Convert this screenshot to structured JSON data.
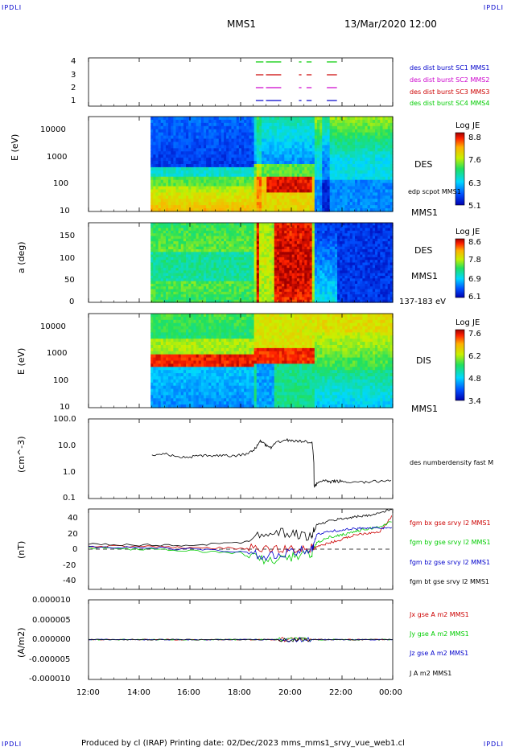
{
  "header": {
    "corner_tl": "IPDLI",
    "corner_tr": "IPDLI",
    "corner_bl": "IPDLI",
    "corner_br": "IPDLI",
    "spacecraft": "MMS1",
    "datetime": "13/Mar/2020 12:00"
  },
  "footer": {
    "produced": "Produced by cl (IRAP)   Printing date: 02/Dec/2023   mms_mms1_srvy_vue_web1.cl"
  },
  "colors": {
    "blue": "#0000cc",
    "magenta": "#cc00cc",
    "red": "#cc0000",
    "green": "#00cc00"
  },
  "chart_data": [
    {
      "type": "line",
      "panel": "burst",
      "yticks": [
        "4",
        "3",
        "2",
        "1"
      ],
      "legend": [
        {
          "name": "des dist burst SC1 MMS1",
          "color": "#0000cc"
        },
        {
          "name": "des dist burst SC2 MMS2",
          "color": "#cc00cc"
        },
        {
          "name": "des dist burst SC3 MMS3",
          "color": "#cc0000"
        },
        {
          "name": "des dist burst SC4 MMS4",
          "color": "#00cc00"
        }
      ],
      "intervals_hours": [
        [
          18.6,
          18.9
        ],
        [
          19.0,
          19.6
        ],
        [
          20.3,
          20.4
        ],
        [
          20.6,
          20.8
        ],
        [
          21.4,
          21.8
        ]
      ]
    },
    {
      "type": "heatmap",
      "panel": "des-energy",
      "ylabel": "E (eV)",
      "yticks": [
        "10000",
        "1000",
        "100",
        "10"
      ],
      "yrange": [
        10,
        30000
      ],
      "ylog": true,
      "label": "DES",
      "label2": "MMS1",
      "overlay_label": "edp scpot MMS1",
      "colorbar": {
        "title": "Log JE",
        "ticks": [
          "8.8",
          "7.6",
          "6.3",
          "5.1"
        ]
      },
      "data_start_hour": 14.45
    },
    {
      "type": "heatmap",
      "panel": "des-pitch",
      "ylabel": "a (deg)",
      "yticks": [
        "150",
        "100",
        "50",
        "0"
      ],
      "yrange": [
        0,
        180
      ],
      "label": "DES",
      "label2": "MMS1",
      "energy_label": "137-183 eV",
      "colorbar": {
        "title": "Log JE",
        "ticks": [
          "8.6",
          "7.8",
          "6.9",
          "6.1"
        ]
      },
      "data_start_hour": 14.45
    },
    {
      "type": "heatmap",
      "panel": "dis-energy",
      "ylabel": "E (eV)",
      "yticks": [
        "10000",
        "1000",
        "100",
        "10"
      ],
      "yrange": [
        10,
        30000
      ],
      "ylog": true,
      "label": "DIS",
      "label2": "MMS1",
      "colorbar": {
        "title": "Log JE",
        "ticks": [
          "7.6",
          "6.2",
          "4.8",
          "3.4"
        ]
      },
      "data_start_hour": 14.45
    },
    {
      "type": "line",
      "panel": "density",
      "ylabel": "(cm^-3)",
      "yticks": [
        "100.0",
        "10.0",
        "1.0",
        "0.1"
      ],
      "ylim": [
        0.1,
        100
      ],
      "ylog": true,
      "series": [
        {
          "name": "des numberdensity fast M",
          "color": "#000000",
          "x": [
            14.5,
            15.0,
            15.5,
            16.0,
            16.5,
            17.0,
            17.5,
            18.0,
            18.3,
            18.6,
            18.8,
            19.0,
            19.2,
            19.5,
            19.8,
            20.1,
            20.4,
            20.8,
            20.9,
            21.0,
            21.3,
            21.5,
            21.7,
            22.0,
            22.5,
            23.0,
            23.5,
            24.0
          ],
          "y": [
            4,
            5,
            3.5,
            3.8,
            4,
            4.2,
            4,
            4.3,
            5,
            8,
            15,
            10,
            8,
            14,
            16,
            15,
            14,
            14,
            0.3,
            0.35,
            0.5,
            0.4,
            0.45,
            0.45,
            0.4,
            0.42,
            0.45,
            0.5
          ]
        }
      ]
    },
    {
      "type": "line",
      "panel": "magnetic-field",
      "ylabel": "(nT)",
      "yticks": [
        "40",
        "20",
        "0",
        "-20",
        "-40"
      ],
      "ylim": [
        -50,
        50
      ],
      "series": [
        {
          "name": "fgm bx gse srvy l2 MMS1",
          "color": "#cc0000",
          "x": [
            12,
            14,
            16,
            18,
            19,
            20,
            20.8,
            21,
            21.5,
            22,
            22.5,
            23,
            23.5,
            24
          ],
          "y": [
            4,
            3,
            2,
            1,
            0,
            0,
            1,
            3,
            8,
            12,
            18,
            20,
            22,
            42
          ]
        },
        {
          "name": "fgm by gse srvy l2 MMS1",
          "color": "#00cc00",
          "x": [
            12,
            14,
            16,
            18,
            19,
            20,
            20.8,
            21,
            21.5,
            22,
            22.5,
            23,
            23.5,
            24
          ],
          "y": [
            2,
            0,
            -2,
            -5,
            -15,
            -10,
            -5,
            8,
            15,
            18,
            22,
            25,
            28,
            35
          ]
        },
        {
          "name": "fgm bz gse srvy l2 MMS1",
          "color": "#0000cc",
          "x": [
            12,
            14,
            16,
            18,
            19,
            20,
            20.8,
            21,
            21.5,
            22,
            22.5,
            23,
            23.5,
            24
          ],
          "y": [
            3,
            2,
            0,
            -3,
            -10,
            -5,
            0,
            18,
            22,
            24,
            25,
            27,
            26,
            26
          ]
        },
        {
          "name": "fgm bt gse srvy l2 MMS1",
          "color": "#000000",
          "x": [
            12,
            14,
            16,
            18,
            19,
            20,
            20.8,
            21,
            21.5,
            22,
            22.5,
            23,
            23.5,
            24
          ],
          "y": [
            6,
            5,
            5,
            8,
            22,
            20,
            15,
            30,
            35,
            38,
            40,
            42,
            45,
            50
          ]
        }
      ]
    },
    {
      "type": "line",
      "panel": "current-density",
      "ylabel": "(A/m2)",
      "yticks": [
        "0.000010",
        "0.000005",
        "0.000000",
        "-0.000005",
        "-0.000010"
      ],
      "ylim": [
        -1e-05,
        1e-05
      ],
      "series": [
        {
          "name": "Jx gse A m2 MMS1",
          "color": "#cc0000",
          "x": [
            12,
            24
          ],
          "y": [
            0,
            0
          ]
        },
        {
          "name": "Jy gse A m2 MMS1",
          "color": "#00cc00",
          "x": [
            12,
            24
          ],
          "y": [
            0,
            0
          ]
        },
        {
          "name": "Jz gse A m2 MMS1",
          "color": "#0000cc",
          "x": [
            12,
            24
          ],
          "y": [
            0,
            0
          ]
        },
        {
          "name": "J A m2 MMS1",
          "color": "#000000",
          "x": [
            12,
            24
          ],
          "y": [
            0,
            0
          ]
        }
      ]
    }
  ],
  "xaxis": {
    "ticks": [
      "12:00",
      "14:00",
      "16:00",
      "18:00",
      "20:00",
      "22:00",
      "00:00"
    ],
    "range_hours": [
      12,
      24
    ]
  }
}
